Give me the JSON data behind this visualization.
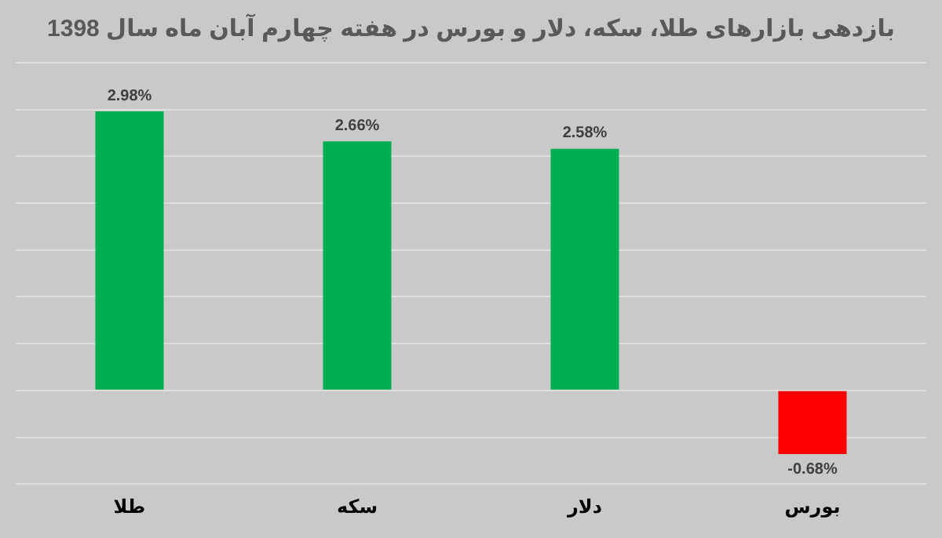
{
  "chart_data": {
    "type": "bar",
    "title": "بازدهی بازارهای طلا، سکه، دلار و بورس در هفته چهارم آبان ماه سال 1398",
    "categories": [
      "طلا",
      "سکه",
      "دلار",
      "بورس"
    ],
    "values": [
      2.98,
      2.66,
      2.58,
      -0.68
    ],
    "colors": [
      "#00b050",
      "#00b050",
      "#00b050",
      "#ff0000"
    ],
    "value_labels": [
      "2.98%",
      "2.66%",
      "2.58%",
      "-0.68%"
    ],
    "ylim": [
      -1,
      3.5
    ],
    "yticks": [
      {
        "value": -1,
        "label": null
      },
      {
        "value": -0.5,
        "label": null
      },
      {
        "value": 0,
        "label": null
      },
      {
        "value": 0.5,
        "label": null
      },
      {
        "value": 1,
        "label": null
      },
      {
        "value": 1.5,
        "label": null
      },
      {
        "value": 2,
        "label": null
      },
      {
        "value": 2.5,
        "label": null
      },
      {
        "value": 3,
        "label": null
      },
      {
        "value": 3.5,
        "label": null
      }
    ],
    "grid": "y",
    "tick_labels": "x"
  }
}
